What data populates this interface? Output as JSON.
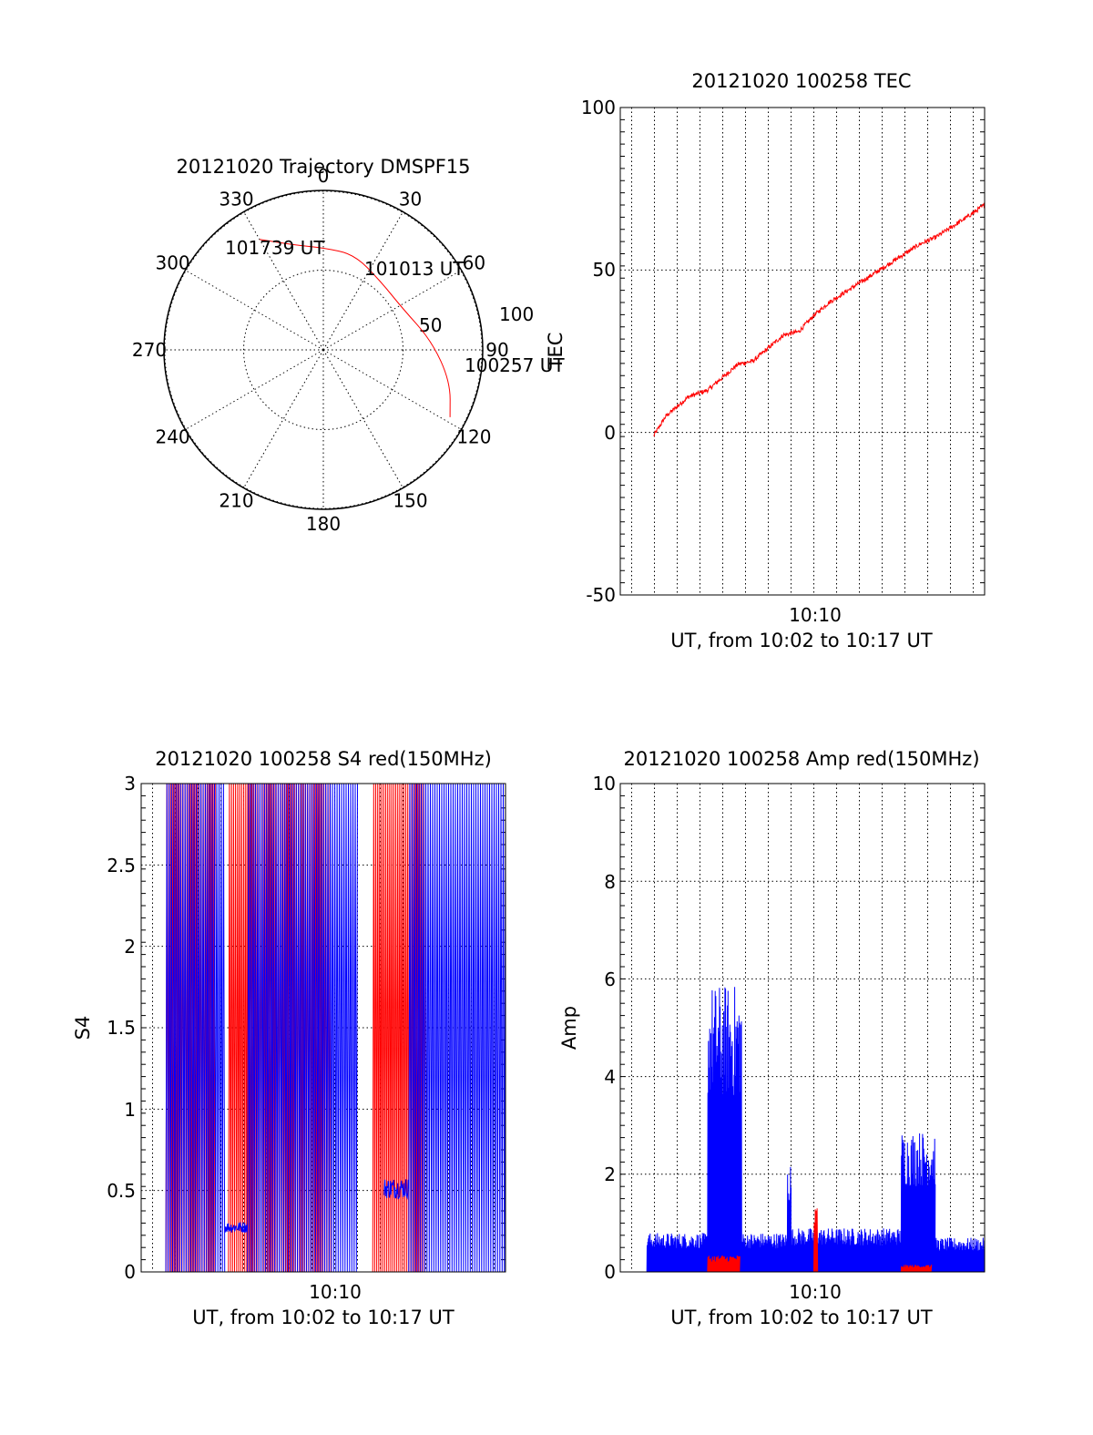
{
  "colors": {
    "red": "#ff0000",
    "blue": "#0000ff",
    "axis": "#000000"
  },
  "polar": {
    "title": "20121020 Trajectory DMSPF15",
    "azimuth_labels": [
      "0",
      "30",
      "60",
      "90",
      "120",
      "150",
      "180",
      "210",
      "240",
      "270",
      "300",
      "330"
    ],
    "radial_labels": [
      "50",
      "100"
    ],
    "annotations": {
      "end": "101739 UT",
      "mid": "101013 UT",
      "start": "100257 UT"
    }
  },
  "tec": {
    "title": "20121020 100258 TEC",
    "ylabel": "TEC",
    "xlabel": "UT, from 10:02 to 10:17 UT",
    "xtick": "10:10",
    "yticks": [
      "100",
      "50",
      "0",
      "-50"
    ]
  },
  "s4": {
    "title": "20121020 100258 S4 red(150MHz)",
    "ylabel": "S4",
    "xlabel": "UT, from 10:02 to 10:17 UT",
    "xtick": "10:10",
    "yticks": [
      "3",
      "2.5",
      "2",
      "1.5",
      "1",
      "0.5",
      "0"
    ]
  },
  "amp": {
    "title": "20121020 100258 Amp red(150MHz)",
    "ylabel": "Amp",
    "xlabel": "UT, from 10:02 to 10:17 UT",
    "xtick": "10:10",
    "yticks": [
      "10",
      "8",
      "6",
      "4",
      "2",
      "0"
    ]
  },
  "chart_data": [
    {
      "type": "scatter",
      "title": "20121020 Trajectory DMSPF15",
      "projection": "polar",
      "angle_unit": "deg azimuth (0 at top, clockwise)",
      "radius_range": [
        0,
        100
      ],
      "series": [
        {
          "points": [
            {
              "az": 118,
              "r": 90
            },
            {
              "az": 104,
              "r": 82
            },
            {
              "az": 85,
              "r": 68
            },
            {
              "az": 62,
              "r": 56
            },
            {
              "az": 40,
              "r": 56
            },
            {
              "az": 18,
              "r": 63
            },
            {
              "az": 0,
              "r": 64
            },
            {
              "az": 345,
              "r": 68
            },
            {
              "az": 330,
              "r": 80
            }
          ]
        }
      ],
      "annotations": [
        "101739 UT",
        "101013 UT",
        "100257 UT"
      ]
    },
    {
      "type": "line",
      "title": "20121020 100258 TEC",
      "xlabel": "UT, from 10:02 to 10:17 UT",
      "ylabel": "TEC",
      "x_ticks": [
        "10:10"
      ],
      "xlim": [
        "10:01:30",
        "10:17:30"
      ],
      "ylim": [
        -50,
        100
      ],
      "series": [
        {
          "color": "#ff0000",
          "x": [
            "10:02:58",
            "10:03:30",
            "10:04:30",
            "10:05:20",
            "10:06:00",
            "10:06:40",
            "10:07:20",
            "10:08:00",
            "10:08:40",
            "10:09:20",
            "10:10:00",
            "10:10:40",
            "10:11:20",
            "10:12:00",
            "10:12:40",
            "10:13:20",
            "10:14:00",
            "10:14:40",
            "10:15:20",
            "10:16:00",
            "10:16:40",
            "10:17:30"
          ],
          "y": [
            -1,
            5,
            11,
            13,
            17,
            21,
            22,
            26,
            30,
            31,
            36,
            40,
            43,
            46,
            49,
            52,
            55,
            58,
            60,
            63,
            66,
            70
          ]
        }
      ]
    },
    {
      "type": "line",
      "title": "20121020 100258 S4 red(150MHz)",
      "xlabel": "UT, from 10:02 to 10:17 UT",
      "ylabel": "S4",
      "x_ticks": [
        "10:10"
      ],
      "xlim": [
        "10:01:30",
        "10:17:30"
      ],
      "ylim": [
        0,
        3
      ],
      "series": [
        {
          "color": "#ff0000",
          "note": "noisy trace spanning 0 to 3",
          "segments": [
            {
              "x": [
                "10:02:35",
                "10:04:45"
              ],
              "range": [
                0,
                3
              ]
            },
            {
              "x": [
                "10:05:20",
                "10:08:30"
              ],
              "range": [
                0,
                3
              ]
            },
            {
              "x": [
                "10:08:30",
                "10:09:50"
              ],
              "range": [
                0,
                3
              ]
            },
            {
              "x": [
                "10:11:40",
                "10:14:00"
              ],
              "range": [
                0,
                3
              ]
            }
          ]
        },
        {
          "color": "#0000ff",
          "note": "noisy trace spanning 0 to 3 with quiet bands",
          "segments": [
            {
              "x": [
                "10:02:35",
                "10:05:10"
              ],
              "range": [
                0,
                3
              ]
            },
            {
              "x": [
                "10:05:10",
                "10:06:10"
              ],
              "range": [
                0.24,
                0.31
              ]
            },
            {
              "x": [
                "10:06:10",
                "10:11:00"
              ],
              "range": [
                0,
                3
              ]
            },
            {
              "x": [
                "10:12:10",
                "10:13:15"
              ],
              "range": [
                0.45,
                0.58
              ]
            },
            {
              "x": [
                "10:13:15",
                "10:17:30"
              ],
              "range": [
                0,
                3
              ]
            }
          ]
        }
      ]
    },
    {
      "type": "line",
      "title": "20121020 100258 Amp red(150MHz)",
      "xlabel": "UT, from 10:02 to 10:17 UT",
      "ylabel": "Amp",
      "x_ticks": [
        "10:10"
      ],
      "xlim": [
        "10:01:30",
        "10:17:30"
      ],
      "ylim": [
        0,
        10
      ],
      "series": [
        {
          "color": "#0000ff",
          "segments": [
            {
              "x": [
                "10:02:40",
                "10:05:20"
              ],
              "range": [
                0,
                0.8
              ]
            },
            {
              "x": [
                "10:05:20",
                "10:06:50"
              ],
              "range": [
                0,
                5.9
              ]
            },
            {
              "x": [
                "10:06:50",
                "10:08:50"
              ],
              "range": [
                0,
                0.8
              ]
            },
            {
              "x": [
                "10:08:50",
                "10:09:00"
              ],
              "range": [
                0,
                2.3
              ]
            },
            {
              "x": [
                "10:09:00",
                "10:13:50"
              ],
              "range": [
                0,
                0.9
              ]
            },
            {
              "x": [
                "10:13:50",
                "10:15:20"
              ],
              "range": [
                0,
                2.9
              ]
            },
            {
              "x": [
                "10:15:20",
                "10:17:30"
              ],
              "range": [
                0,
                0.7
              ]
            }
          ]
        },
        {
          "color": "#ff0000",
          "segments": [
            {
              "x": [
                "10:05:20",
                "10:06:45"
              ],
              "range": [
                0,
                0.35
              ]
            },
            {
              "x": [
                "10:10:00",
                "10:10:10"
              ],
              "range": [
                0,
                1.4
              ]
            },
            {
              "x": [
                "10:13:50",
                "10:15:10"
              ],
              "range": [
                0,
                0.15
              ]
            }
          ]
        }
      ]
    }
  ]
}
